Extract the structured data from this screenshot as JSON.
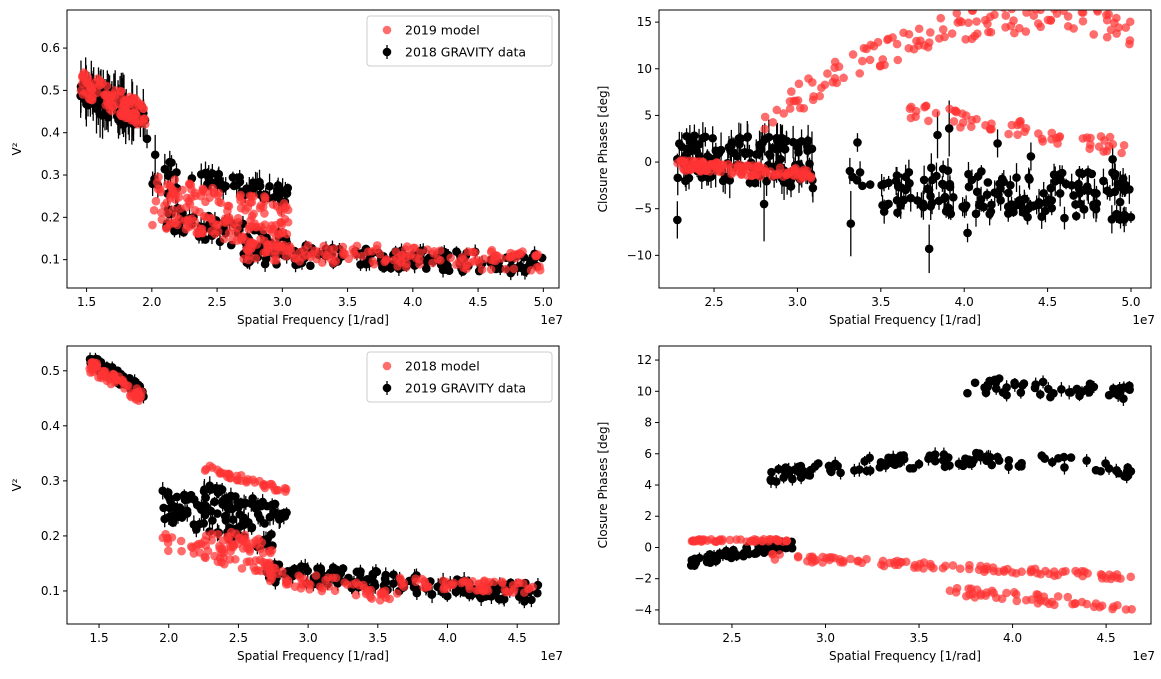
{
  "colors": {
    "model": "#ff3333",
    "data": "#000000",
    "errorbar": "#000000"
  },
  "chart_data": [
    {
      "id": "tl",
      "type": "scatter",
      "xlabel": "Spatial Frequency [1/rad]",
      "ylabel": "V²",
      "x_scale_label": "1e7",
      "xlim": [
        13.5,
        51.2
      ],
      "ylim": [
        0.033,
        0.69
      ],
      "xticks": [
        15,
        20,
        25,
        30,
        35,
        40,
        45,
        50
      ],
      "xtick_labels": [
        "1.5",
        "2.0",
        "2.5",
        "3.0",
        "3.5",
        "4.0",
        "4.5",
        "5.0"
      ],
      "yticks": [
        0.1,
        0.2,
        0.3,
        0.4,
        0.5,
        0.6
      ],
      "ytick_labels": [
        "0.1",
        "0.2",
        "0.3",
        "0.4",
        "0.5",
        "0.6"
      ],
      "legend": {
        "position": "top-right",
        "entries": [
          {
            "label": "2019 model",
            "kind": "model"
          },
          {
            "label": "2018 GRAVITY data",
            "kind": "data"
          }
        ]
      },
      "data_clusters": [
        {
          "x": [
            14.5,
            19.5
          ],
          "y": [
            0.5,
            0.43
          ],
          "spread": 0.035,
          "n": 90,
          "err": 0.04
        },
        {
          "x": [
            19.5,
            22.5
          ],
          "y": [
            0.34,
            0.26
          ],
          "spread": 0.05,
          "n": 14,
          "err": 0.03
        },
        {
          "x": [
            21.0,
            30.5
          ],
          "y": [
            0.2,
            0.13
          ],
          "spread": 0.03,
          "n": 70,
          "err": 0.015
        },
        {
          "x": [
            23.0,
            30.5
          ],
          "y": [
            0.3,
            0.25
          ],
          "spread": 0.02,
          "n": 50,
          "err": 0.02
        },
        {
          "x": [
            27.0,
            50.0
          ],
          "y": [
            0.115,
            0.09
          ],
          "spread": 0.025,
          "n": 170,
          "err": 0.012
        }
      ],
      "model_clusters": [
        {
          "x": [
            14.5,
            19.5
          ],
          "y": [
            0.52,
            0.44
          ],
          "spread": 0.03,
          "n": 110
        },
        {
          "x": [
            20.0,
            30.5
          ],
          "y": [
            0.24,
            0.18
          ],
          "spread": 0.06,
          "n": 180
        },
        {
          "x": [
            27.0,
            50.0
          ],
          "y": [
            0.12,
            0.095
          ],
          "spread": 0.025,
          "n": 150
        }
      ]
    },
    {
      "id": "tr",
      "type": "scatter",
      "xlabel": "Spatial Frequency [1/rad]",
      "ylabel": "Closure Phases [deg]",
      "x_scale_label": "1e7",
      "xlim": [
        21.7,
        51.2
      ],
      "ylim": [
        -13.5,
        16.3
      ],
      "xticks": [
        25,
        30,
        35,
        40,
        45,
        50
      ],
      "xtick_labels": [
        "2.5",
        "3.0",
        "3.5",
        "4.0",
        "4.5",
        "5.0"
      ],
      "yticks": [
        -10,
        -5,
        0,
        5,
        10,
        15
      ],
      "ytick_labels": [
        "−10",
        "−5",
        "0",
        "5",
        "10",
        "15"
      ],
      "data_clusters": [
        {
          "x": [
            22.8,
            31.0
          ],
          "y": [
            0.5,
            0.0
          ],
          "spread": 2.5,
          "n": 120,
          "err": 1.2
        },
        {
          "x": [
            28.0,
            50.0
          ],
          "y": [
            -1.5,
            -2.5
          ],
          "spread": 1.4,
          "n": 100,
          "err": 1.0
        },
        {
          "x": [
            35.0,
            50.0
          ],
          "y": [
            -4.5,
            -5.2
          ],
          "spread": 1.0,
          "n": 80,
          "err": 1.0
        }
      ],
      "data_outliers": [
        [
          22.8,
          -6.2,
          2.0
        ],
        [
          28.0,
          -4.5,
          4.0
        ],
        [
          33.2,
          -6.6,
          3.5
        ],
        [
          37.9,
          -9.3,
          2.6
        ],
        [
          28.8,
          2.2,
          2.0
        ],
        [
          29.1,
          2.5,
          1.5
        ],
        [
          33.6,
          2.1,
          1.0
        ],
        [
          38.4,
          2.9,
          2.5
        ],
        [
          39.1,
          3.6,
          3.0
        ],
        [
          42.0,
          2.0,
          1.5
        ],
        [
          44.0,
          0.6,
          1.5
        ],
        [
          48.9,
          0.3,
          1.5
        ],
        [
          40.2,
          -7.6,
          1.0
        ]
      ],
      "model_clusters": [
        {
          "x": [
            22.8,
            31.0
          ],
          "y": [
            -0.3,
            -1.4
          ],
          "spread": 0.6,
          "n": 120
        },
        {
          "x": [
            28.0,
            50.0
          ],
          "y": [
            4.2,
            12.0
          ],
          "spread": 1.6,
          "n": 130,
          "curve": "arch",
          "peak": 14.2
        },
        {
          "x": [
            36.0,
            50.0
          ],
          "y": [
            5.8,
            1.4
          ],
          "spread": 0.9,
          "n": 60
        }
      ]
    },
    {
      "id": "bl",
      "type": "scatter",
      "xlabel": "Spatial Frequency [1/rad]",
      "ylabel": "V²",
      "x_scale_label": "1e7",
      "xlim": [
        12.7,
        48.0
      ],
      "ylim": [
        0.04,
        0.545
      ],
      "xticks": [
        15,
        20,
        25,
        30,
        35,
        40,
        45
      ],
      "xtick_labels": [
        "1.5",
        "2.0",
        "2.5",
        "3.0",
        "3.5",
        "4.0",
        "4.5"
      ],
      "yticks": [
        0.1,
        0.2,
        0.3,
        0.4,
        0.5
      ],
      "ytick_labels": [
        "0.1",
        "0.2",
        "0.3",
        "0.4",
        "0.5"
      ],
      "legend": {
        "position": "top-right",
        "entries": [
          {
            "label": "2018 model",
            "kind": "model"
          },
          {
            "label": "2019 GRAVITY data",
            "kind": "data"
          }
        ]
      },
      "data_clusters": [
        {
          "x": [
            14.3,
            18.2
          ],
          "y": [
            0.52,
            0.46
          ],
          "spread": 0.012,
          "n": 60,
          "err": 0.008
        },
        {
          "x": [
            19.5,
            27.5
          ],
          "y": [
            0.26,
            0.2
          ],
          "spread": 0.03,
          "n": 80,
          "err": 0.012
        },
        {
          "x": [
            22.5,
            28.5
          ],
          "y": [
            0.28,
            0.24
          ],
          "spread": 0.015,
          "n": 50,
          "err": 0.012
        },
        {
          "x": [
            27.0,
            46.5
          ],
          "y": [
            0.135,
            0.095
          ],
          "spread": 0.018,
          "n": 160,
          "err": 0.01
        }
      ],
      "model_clusters": [
        {
          "x": [
            14.3,
            18.2
          ],
          "y": [
            0.51,
            0.45
          ],
          "spread": 0.012,
          "n": 60
        },
        {
          "x": [
            22.5,
            28.5
          ],
          "y": [
            0.325,
            0.28
          ],
          "spread": 0.006,
          "n": 40
        },
        {
          "x": [
            19.5,
            27.5
          ],
          "y": [
            0.19,
            0.14
          ],
          "spread": 0.015,
          "n": 50
        },
        {
          "x": [
            22.5,
            27.5
          ],
          "y": [
            0.2,
            0.18
          ],
          "spread": 0.015,
          "n": 40
        },
        {
          "x": [
            27.0,
            36.5
          ],
          "y": [
            0.13,
            0.09
          ],
          "spread": 0.015,
          "n": 60
        },
        {
          "x": [
            36.5,
            46.5
          ],
          "y": [
            0.115,
            0.105
          ],
          "spread": 0.01,
          "n": 60
        }
      ]
    },
    {
      "id": "br",
      "type": "scatter",
      "xlabel": "Spatial Frequency [1/rad]",
      "ylabel": "Closure Phases [deg]",
      "x_scale_label": "1e7",
      "xlim": [
        21.1,
        47.4
      ],
      "ylim": [
        -4.9,
        12.9
      ],
      "xticks": [
        25,
        30,
        35,
        40,
        45
      ],
      "xtick_labels": [
        "2.5",
        "3.0",
        "3.5",
        "4.0",
        "4.5"
      ],
      "yticks": [
        -4,
        -2,
        0,
        2,
        4,
        6,
        8,
        10,
        12
      ],
      "ytick_labels": [
        "−4",
        "−2",
        "0",
        "2",
        "4",
        "6",
        "8",
        "10",
        "12"
      ],
      "data_clusters": [
        {
          "x": [
            22.8,
            28.3
          ],
          "y": [
            -0.9,
            0.2
          ],
          "spread": 0.3,
          "n": 60,
          "err": 0.25
        },
        {
          "x": [
            27.0,
            46.5
          ],
          "y": [
            4.5,
            4.5
          ],
          "spread": 0.45,
          "n": 110,
          "err": 0.3,
          "curve": "hump",
          "peak": 5.6
        },
        {
          "x": [
            36.5,
            46.5
          ],
          "y": [
            10.5,
            9.8
          ],
          "spread": 0.55,
          "n": 50,
          "err": 0.3
        }
      ],
      "model_clusters": [
        {
          "x": [
            22.8,
            28.3
          ],
          "y": [
            0.45,
            0.45
          ],
          "spread": 0.08,
          "n": 50
        },
        {
          "x": [
            27.0,
            46.5
          ],
          "y": [
            -0.6,
            -1.9
          ],
          "spread": 0.2,
          "n": 100
        },
        {
          "x": [
            36.5,
            46.5
          ],
          "y": [
            -2.8,
            -3.8
          ],
          "spread": 0.3,
          "n": 50
        }
      ]
    }
  ]
}
